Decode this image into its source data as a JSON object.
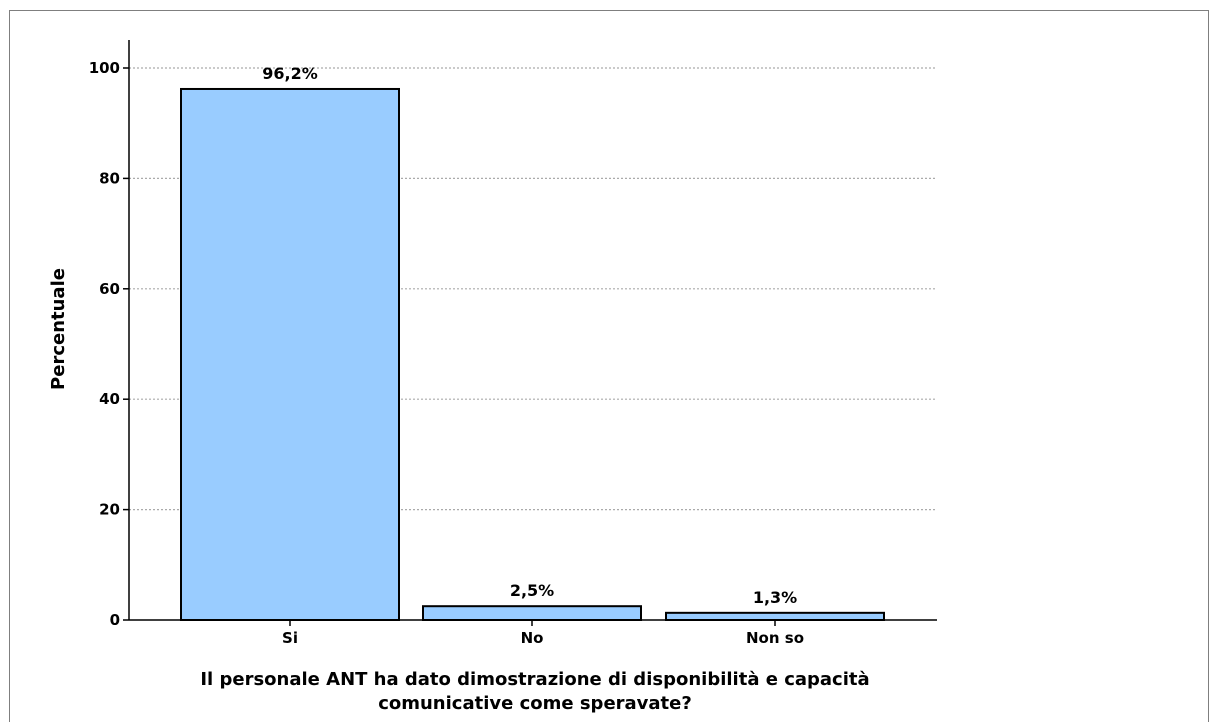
{
  "chart_data": {
    "type": "bar",
    "categories": [
      "Si",
      "No",
      "Non so"
    ],
    "values": [
      96.2,
      2.5,
      1.3
    ],
    "data_labels": [
      "96,2%",
      "2,5%",
      "1,3%"
    ],
    "title": "",
    "xlabel_lines": [
      "Il personale ANT ha dato dimostrazione di disponibilità e capacità",
      "comunicative come speravate?"
    ],
    "ylabel": "Percentuale",
    "ylim": [
      0,
      105
    ],
    "yticks": [
      0,
      20,
      40,
      60,
      80,
      100
    ],
    "grid": "horizontal dotted",
    "bar_color": "#99ccff",
    "bar_edge_color": "#000000",
    "grid_color": "#aaaaaa"
  }
}
